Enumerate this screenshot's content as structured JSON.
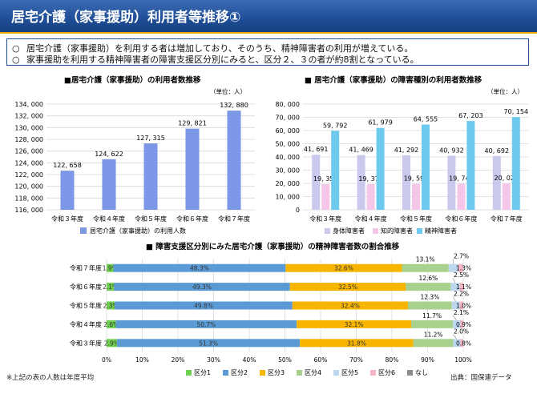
{
  "title": "居宅介護（家事援助）利用者等推移①",
  "summary": [
    {
      "marker": "○",
      "text": "居宅介護（家事援助）を利用する者は増加しており、そのうち、精神障害者の利用が増えている。"
    },
    {
      "marker": "○",
      "text": "家事援助を利用する精神障害者の障害支援区分別にみると、区分２、３の者が約8割となっている。"
    }
  ],
  "footnote": "※上記の表の人数は年度平均",
  "source": "出典：国保連データ",
  "colors": {
    "header": "#1f4e97",
    "accent_line": "#f0a400"
  },
  "chart_data": [
    {
      "type": "bar",
      "title": "■居宅介護（家事援助）の利用者数推移",
      "unit_note": "（単位：人）",
      "categories": [
        "令和３年度",
        "令和４年度",
        "令和５年度",
        "令和６年度",
        "令和７年度"
      ],
      "series": [
        {
          "name": "居宅介護（家事援助）の利用人数",
          "color": "#7b97e6",
          "values": [
            122658,
            124622,
            127315,
            129821,
            132880
          ],
          "labels": [
            "122, 658",
            "124, 622",
            "127, 315",
            "129, 821",
            "132, 880"
          ]
        }
      ],
      "ylim": [
        116000,
        134000
      ],
      "yticks": [
        116000,
        118000,
        120000,
        122000,
        124000,
        126000,
        128000,
        130000,
        132000,
        134000
      ],
      "ytick_labels": [
        "116, 000",
        "118, 000",
        "120, 000",
        "122, 000",
        "124, 000",
        "126, 000",
        "128, 000",
        "130, 000",
        "132, 000",
        "134, 000"
      ],
      "grid": true,
      "legend": "bottom"
    },
    {
      "type": "bar",
      "title": "■ 居宅介護（家事援助）の障害種別の利用者数推移",
      "unit_note": "（単位：人）",
      "categories": [
        "令和３年度",
        "令和４年度",
        "令和５年度",
        "令和６年度",
        "令和７年度"
      ],
      "series": [
        {
          "name": "身体障害者",
          "color": "#c9c9ee",
          "values": [
            41691,
            41469,
            41292,
            40932,
            40692
          ],
          "labels": [
            "41, 691",
            "41, 469",
            "41, 292",
            "40, 932",
            "40, 692"
          ]
        },
        {
          "name": "知的障害者",
          "color": "#f5c6e8",
          "values": [
            19354,
            19371,
            19598,
            19749,
            20024
          ],
          "labels": [
            "19, 354",
            "19, 371",
            "19, 598",
            "19, 749",
            "20, 024"
          ]
        },
        {
          "name": "精神障害者",
          "color": "#6ec9ee",
          "values": [
            59792,
            61979,
            64555,
            67203,
            70154
          ],
          "labels": [
            "59, 792",
            "61, 979",
            "64, 555",
            "67, 203",
            "70, 154"
          ]
        }
      ],
      "ylim": [
        0,
        80000
      ],
      "yticks": [
        0,
        10000,
        20000,
        30000,
        40000,
        50000,
        60000,
        70000,
        80000
      ],
      "ytick_labels": [
        "0",
        "10, 000",
        "20, 000",
        "30, 000",
        "40, 000",
        "50, 000",
        "60, 000",
        "70, 000",
        "80, 000"
      ],
      "grid": true,
      "legend": "bottom"
    },
    {
      "type": "bar",
      "orientation": "horizontal-stacked-100",
      "title": "■ 障害支援区分別にみた居宅介護（家事援助）の精神障害者数の割合推移",
      "categories": [
        "令和７年度",
        "令和６年度",
        "令和５年度",
        "令和４年度",
        "令和３年度"
      ],
      "series": [
        {
          "name": "区分1",
          "color": "#6fcf4e",
          "values": [
            1.9,
            2.1,
            2.3,
            2.6,
            2.9
          ],
          "labels": [
            "1.9%",
            "2.1%",
            "2.3%",
            "2.6%",
            "2.9%"
          ]
        },
        {
          "name": "区分2",
          "color": "#5b9bd5",
          "values": [
            48.3,
            49.3,
            49.8,
            50.7,
            51.3
          ],
          "labels": [
            "48.3%",
            "49.3%",
            "49.8%",
            "50.7%",
            "51.3%"
          ]
        },
        {
          "name": "区分3",
          "color": "#f7b500",
          "values": [
            32.6,
            32.5,
            32.4,
            32.1,
            31.8
          ],
          "labels": [
            "32.6%",
            "32.5%",
            "32.4%",
            "32.1%",
            "31.8%"
          ]
        },
        {
          "name": "区分4",
          "color": "#a9d18e",
          "values": [
            13.1,
            12.6,
            12.3,
            11.7,
            11.2
          ],
          "labels": [
            "13.1%",
            "12.6%",
            "12.3%",
            "11.7%",
            "11.2%"
          ]
        },
        {
          "name": "区分5",
          "color": "#bdd7ee",
          "values": [
            2.7,
            2.5,
            2.2,
            2.1,
            2.0
          ],
          "labels": [
            "2.7%",
            "2.5%",
            "2.2%",
            "2.1%",
            "2.0%"
          ]
        },
        {
          "name": "区分6",
          "color": "#f4b6c2",
          "values": [
            1.3,
            1.1,
            1.0,
            0.9,
            0.8
          ],
          "labels": [
            "1.3%",
            "1.1%",
            "1.0%",
            "0.9%",
            "0.8%"
          ]
        },
        {
          "name": "なし",
          "color": "#8c8c8c",
          "values": [
            0,
            0,
            0,
            0,
            0
          ],
          "labels": []
        }
      ],
      "xlim": [
        0,
        100
      ],
      "xticks": [
        0,
        10,
        20,
        30,
        40,
        50,
        60,
        70,
        80,
        90,
        100
      ],
      "xtick_labels": [
        "0%",
        "10%",
        "20%",
        "30%",
        "40%",
        "50%",
        "60%",
        "70%",
        "80%",
        "90%",
        "100%"
      ],
      "grid": true,
      "legend": "bottom"
    }
  ]
}
